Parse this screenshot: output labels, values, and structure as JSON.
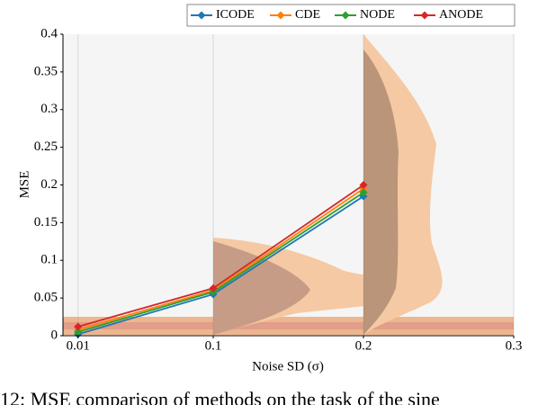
{
  "chart_data": {
    "type": "line",
    "xlabel": "Noise SD (σ)",
    "ylabel": "MSE",
    "caption": "12: MSE comparison of methods on the task of the sine",
    "x": [
      0.01,
      0.1,
      0.2
    ],
    "series": [
      {
        "name": "ICODE",
        "color": "#1f77b4",
        "values": [
          0.002,
          0.055,
          0.185
        ]
      },
      {
        "name": "CDE",
        "color": "#ff7f0e",
        "values": [
          0.008,
          0.06,
          0.195
        ]
      },
      {
        "name": "NODE",
        "color": "#2ca02c",
        "values": [
          0.005,
          0.058,
          0.19
        ]
      },
      {
        "name": "ANODE",
        "color": "#d62728",
        "values": [
          0.012,
          0.063,
          0.2
        ]
      }
    ],
    "xlim": [
      0,
      0.3
    ],
    "ylim": [
      0,
      0.4
    ],
    "xticks": [
      0.01,
      0.1,
      0.2,
      0.3
    ],
    "yticks": [
      0,
      0.05,
      0.1,
      0.15,
      0.2,
      0.25,
      0.3,
      0.35,
      0.4
    ],
    "grid": true,
    "legend": "top-right"
  }
}
